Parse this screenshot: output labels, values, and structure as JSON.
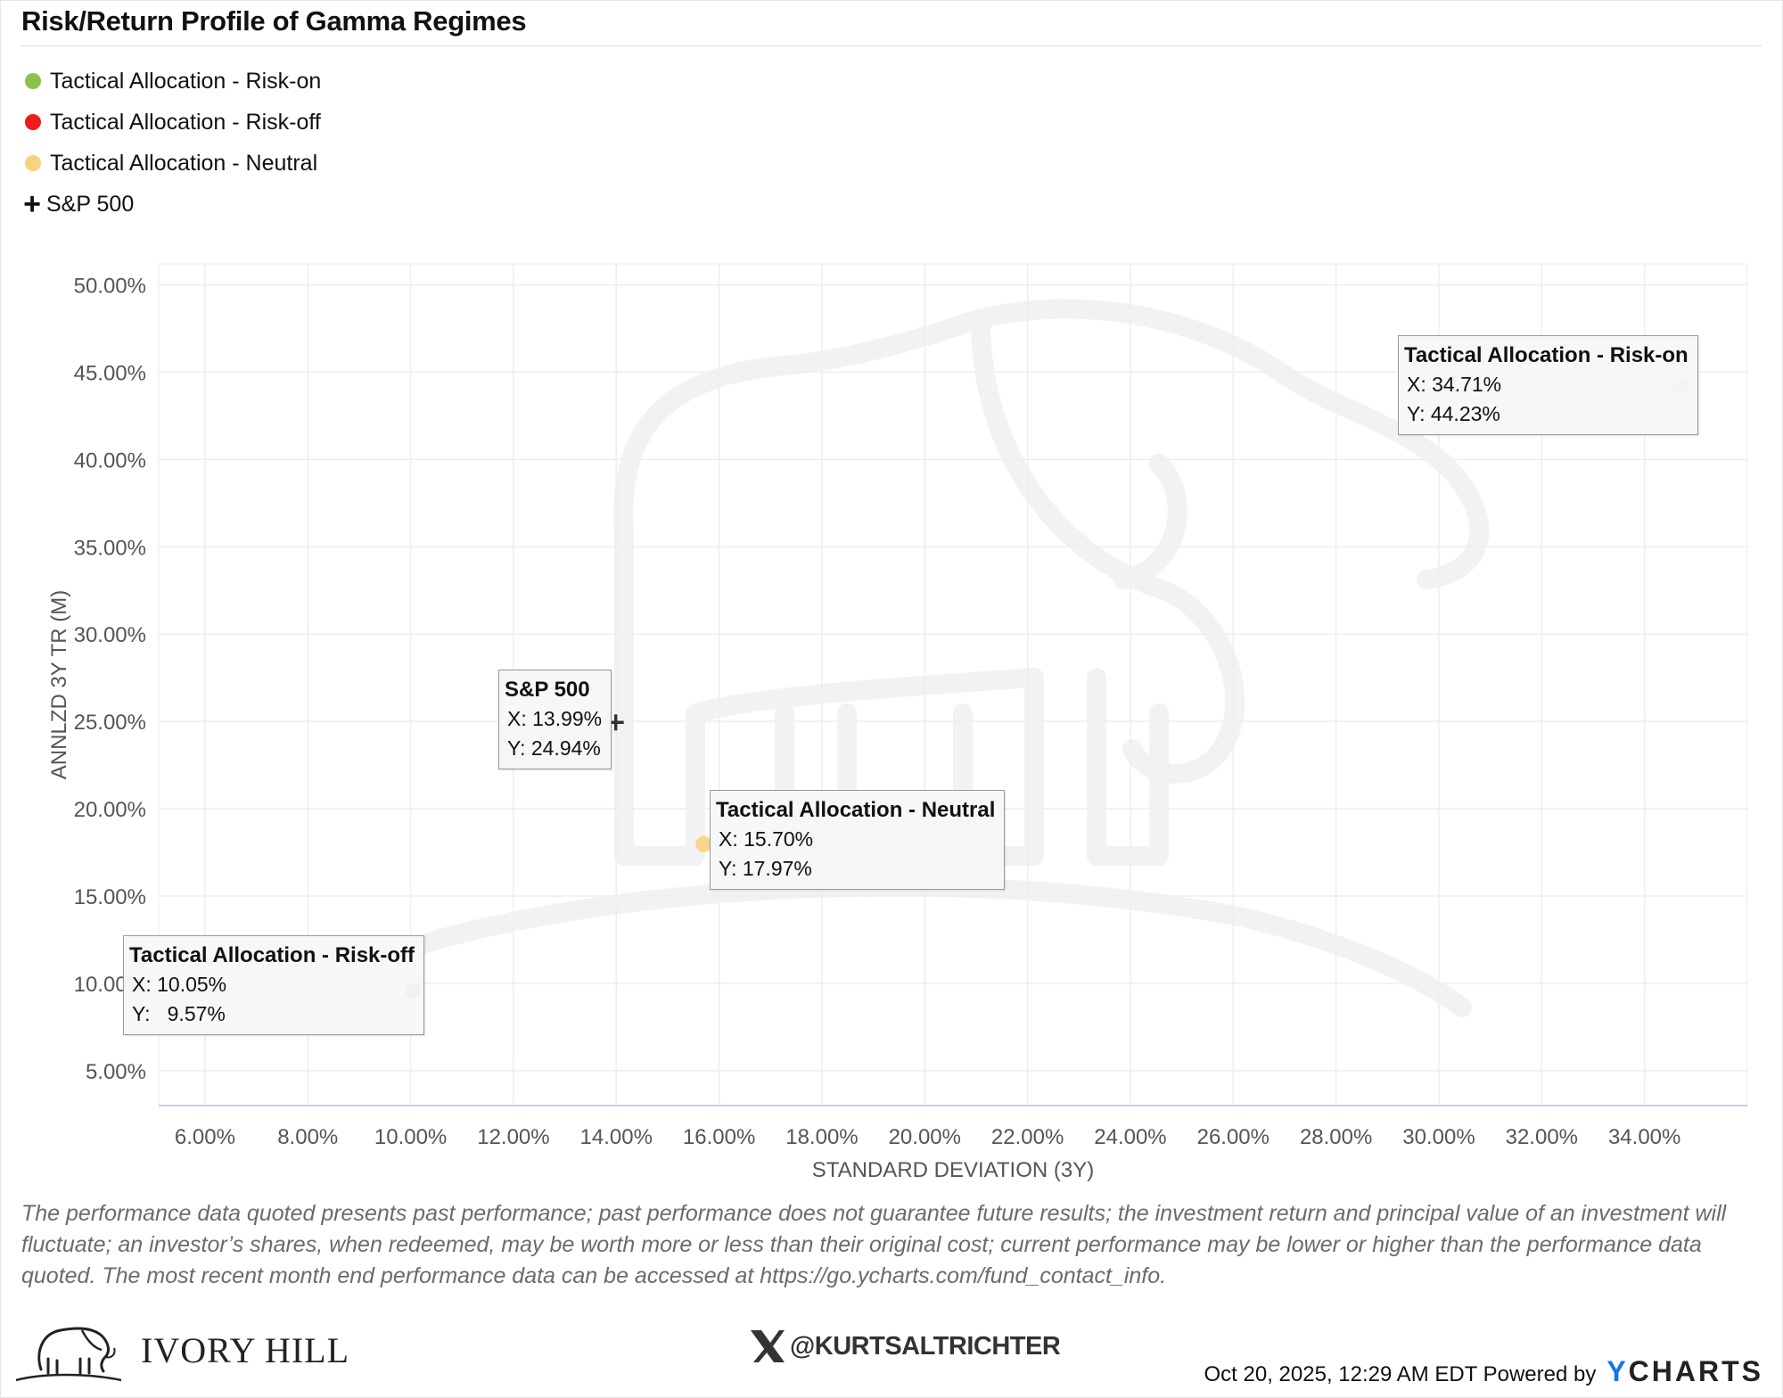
{
  "title": "Risk/Return Profile of Gamma Regimes",
  "legend": [
    {
      "label": "Tactical Allocation - Risk-on",
      "color": "#8bc34a",
      "marker": "circle"
    },
    {
      "label": "Tactical Allocation - Risk-off",
      "color": "#ee1c1c",
      "marker": "circle"
    },
    {
      "label": "Tactical Allocation - Neutral",
      "color": "#f8d27f",
      "marker": "circle"
    },
    {
      "label": "S&P 500",
      "color": "#111111",
      "marker": "plus"
    }
  ],
  "chart_data": {
    "type": "scatter",
    "title": "Risk/Return Profile of Gamma Regimes",
    "xlabel": "STANDARD DEVIATION (3Y)",
    "ylabel": "ANNLZD 3Y TR (M)",
    "xlim": [
      5.1,
      36.0
    ],
    "ylim": [
      3.0,
      51.2
    ],
    "x_ticks": [
      6,
      8,
      10,
      12,
      14,
      16,
      18,
      20,
      22,
      24,
      26,
      28,
      30,
      32,
      34
    ],
    "y_ticks": [
      5,
      10,
      15,
      20,
      25,
      30,
      35,
      40,
      45,
      50
    ],
    "x_tick_labels": [
      "6.00%",
      "8.00%",
      "10.00%",
      "12.00%",
      "14.00%",
      "16.00%",
      "18.00%",
      "20.00%",
      "22.00%",
      "24.00%",
      "26.00%",
      "28.00%",
      "30.00%",
      "32.00%",
      "34.00%"
    ],
    "y_tick_labels": [
      "5.00%",
      "10.00%",
      "15.00%",
      "20.00%",
      "25.00%",
      "30.00%",
      "35.00%",
      "40.00%",
      "45.00%",
      "50.00%"
    ],
    "grid": true,
    "legend_position": "top-left",
    "series": [
      {
        "name": "Tactical Allocation - Risk-on",
        "x": 34.71,
        "y": 44.23,
        "color": "#8bc34a",
        "marker": "circle",
        "label_x": "X: 34.71%",
        "label_y": "Y: 44.23%"
      },
      {
        "name": "Tactical Allocation - Risk-off",
        "x": 10.05,
        "y": 9.57,
        "color": "#ee1c1c",
        "marker": "circle",
        "label_x": "X: 10.05%",
        "label_y": "Y:   9.57%"
      },
      {
        "name": "Tactical Allocation - Neutral",
        "x": 15.7,
        "y": 17.97,
        "color": "#f8d27f",
        "marker": "circle",
        "label_x": "X: 15.70%",
        "label_y": "Y: 17.97%"
      },
      {
        "name": "S&P 500",
        "x": 13.99,
        "y": 24.94,
        "color": "#333333",
        "marker": "plus",
        "label_x": "X: 13.99%",
        "label_y": "Y: 24.94%"
      }
    ]
  },
  "disclaimer": "The performance data quoted presents past performance; past performance does not guarantee future results; the investment return and principal value of an investment will fluctuate; an investor’s shares, when redeemed, may be worth more or less than their original cost; current performance may be lower or higher than the performance data quoted. The most recent month end performance data can be accessed at https://go.ycharts.com/fund_contact_info.",
  "footer": {
    "brand": "IVORY HILL",
    "x_handle": "@KURTSALTRICHTER",
    "timestamp": "Oct 20, 2025, 12:29 AM EDT Powered by",
    "ycharts_y": "Y",
    "ycharts_rest": "CHARTS"
  }
}
